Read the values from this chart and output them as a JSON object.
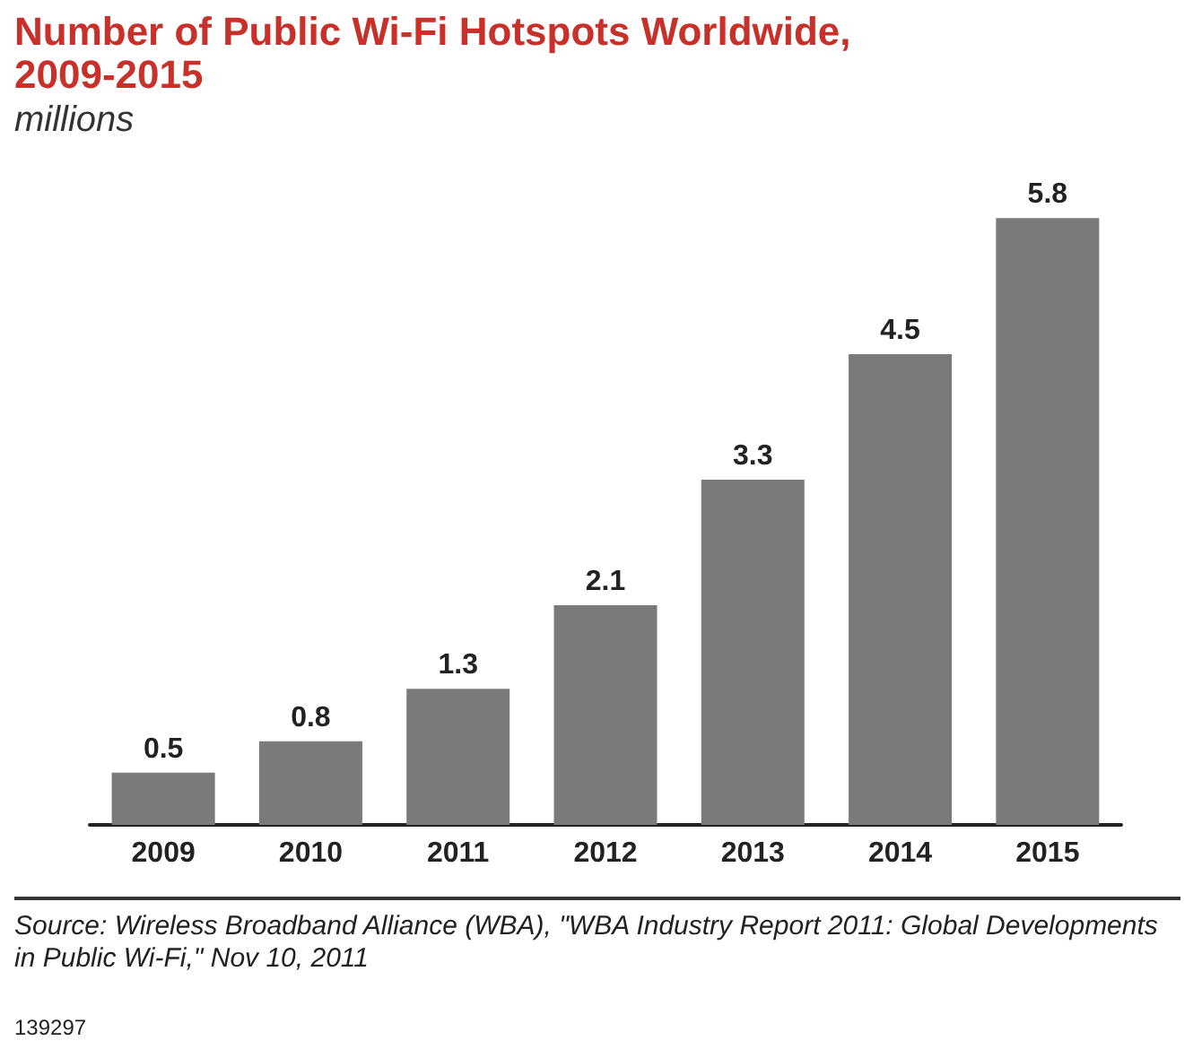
{
  "chart_data": {
    "type": "bar",
    "title": "Number of Public Wi-Fi Hotspots Worldwide, 2009-2015",
    "subtitle": "millions",
    "categories": [
      "2009",
      "2010",
      "2011",
      "2012",
      "2013",
      "2014",
      "2015"
    ],
    "values": [
      0.5,
      0.8,
      1.3,
      2.1,
      3.3,
      4.5,
      5.8
    ],
    "color": "#7a7a7a",
    "data_labels": true,
    "annotations": [
      "Source: Wireless Broadband Alliance (WBA), \"WBA Industry Report 2011: Global Developments in Public Wi-Fi,\" Nov 10, 2011",
      "139297"
    ]
  }
}
